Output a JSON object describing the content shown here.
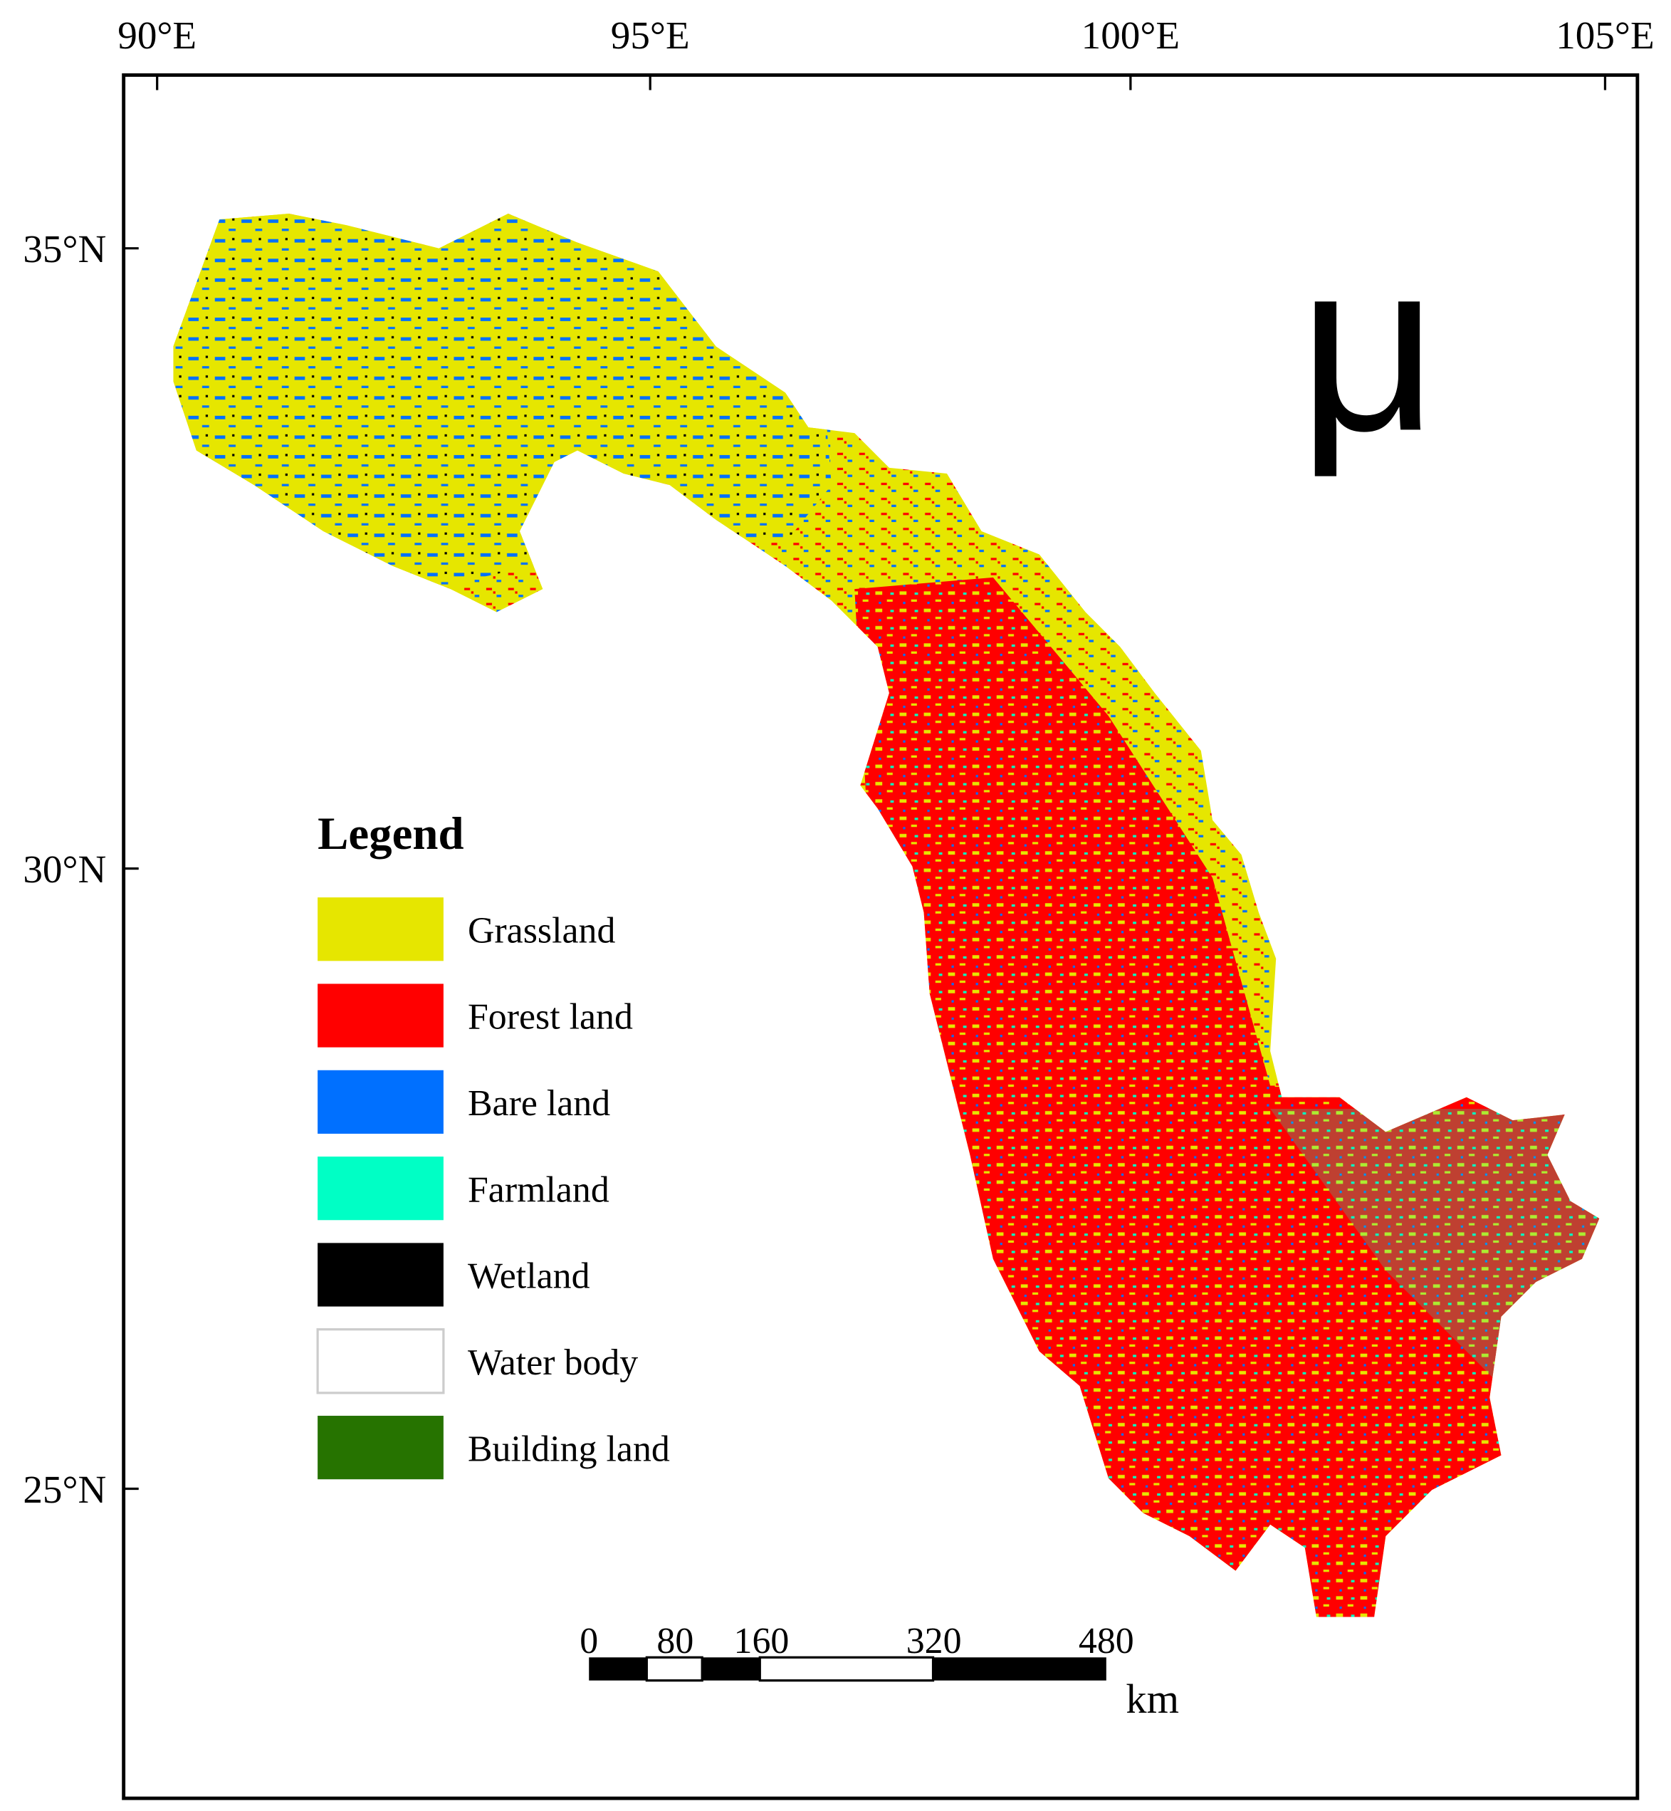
{
  "axes": {
    "top_labels": [
      "90°E",
      "95°E",
      "100°E",
      "105°E"
    ],
    "left_labels": [
      "35°N",
      "30°N",
      "25°N"
    ]
  },
  "north_symbol": "μ",
  "legend": {
    "title": "Legend",
    "items": [
      {
        "label": "Grassland",
        "color": "#e6e600"
      },
      {
        "label": "Forest land",
        "color": "#ff0000"
      },
      {
        "label": "Bare land",
        "color": "#0070ff"
      },
      {
        "label": "Farmland",
        "color": "#00ffc5"
      },
      {
        "label": "Wetland",
        "color": "#000000"
      },
      {
        "label": "Water body",
        "color": "#ffffff"
      },
      {
        "label": "Building land",
        "color": "#267300"
      }
    ]
  },
  "scale_bar": {
    "labels": [
      0,
      80,
      160,
      320,
      480
    ],
    "unit": "km"
  }
}
